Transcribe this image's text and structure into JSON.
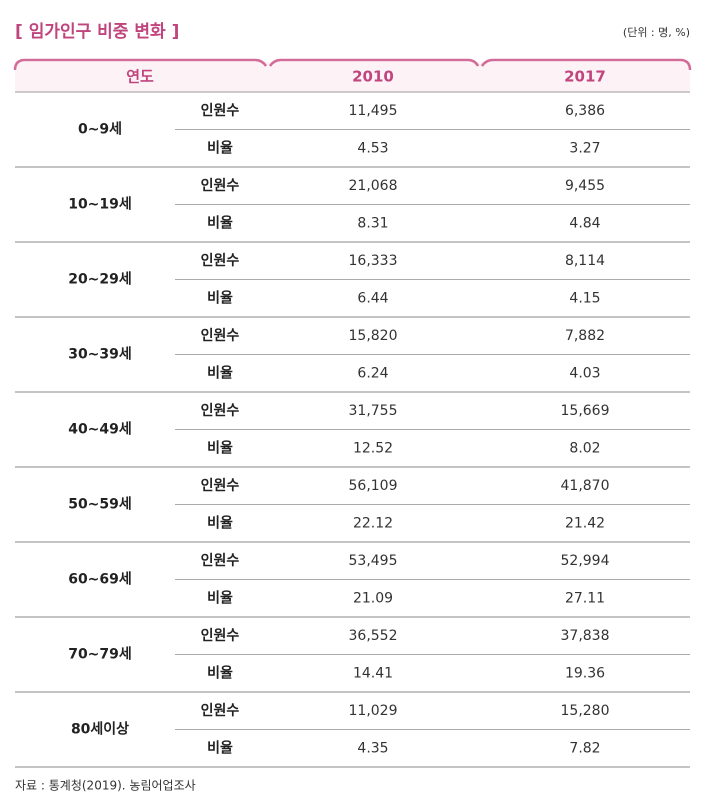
{
  "title": "[ 임가인구 비중 변화 ]",
  "unit": "(단위 : 명, %)",
  "table": {
    "header": [
      "연도",
      "2010",
      "2017"
    ],
    "groups": [
      {
        "label": "0~9세",
        "rows": [
          {
            "label": "인원수",
            "values": [
              "11,495",
              "6,386"
            ]
          },
          {
            "label": "비율",
            "values": [
              "4.53",
              "3.27"
            ]
          }
        ]
      },
      {
        "label": "10~19세",
        "rows": [
          {
            "label": "인원수",
            "values": [
              "21,068",
              "9,455"
            ]
          },
          {
            "label": "비율",
            "values": [
              "8.31",
              "4.84"
            ]
          }
        ]
      },
      {
        "label": "20~29세",
        "rows": [
          {
            "label": "인원수",
            "values": [
              "16,333",
              "8,114"
            ]
          },
          {
            "label": "비율",
            "values": [
              "6.44",
              "4.15"
            ]
          }
        ]
      },
      {
        "label": "30~39세",
        "rows": [
          {
            "label": "인원수",
            "values": [
              "15,820",
              "7,882"
            ]
          },
          {
            "label": "비율",
            "values": [
              "6.24",
              "4.03"
            ]
          }
        ]
      },
      {
        "label": "40~49세",
        "rows": [
          {
            "label": "인원수",
            "values": [
              "31,755",
              "15,669"
            ]
          },
          {
            "label": "비율",
            "values": [
              "12.52",
              "8.02"
            ]
          }
        ]
      },
      {
        "label": "50~59세",
        "rows": [
          {
            "label": "인원수",
            "values": [
              "56,109",
              "41,870"
            ]
          },
          {
            "label": "비율",
            "values": [
              "22.12",
              "21.42"
            ]
          }
        ]
      },
      {
        "label": "60~69세",
        "rows": [
          {
            "label": "인원수",
            "values": [
              "53,495",
              "52,994"
            ]
          },
          {
            "label": "비율",
            "values": [
              "21.09",
              "27.11"
            ]
          }
        ]
      },
      {
        "label": "70~79세",
        "rows": [
          {
            "label": "인원수",
            "values": [
              "36,552",
              "37,838"
            ]
          },
          {
            "label": "비율",
            "values": [
              "14.41",
              "19.36"
            ]
          }
        ]
      },
      {
        "label": "80세이상",
        "rows": [
          {
            "label": "인원수",
            "values": [
              "11,029",
              "15,280"
            ]
          },
          {
            "label": "비율",
            "values": [
              "4.35",
              "7.82"
            ]
          }
        ]
      }
    ]
  },
  "source": "자료 : 통계청(2019). 농림어업조사"
}
